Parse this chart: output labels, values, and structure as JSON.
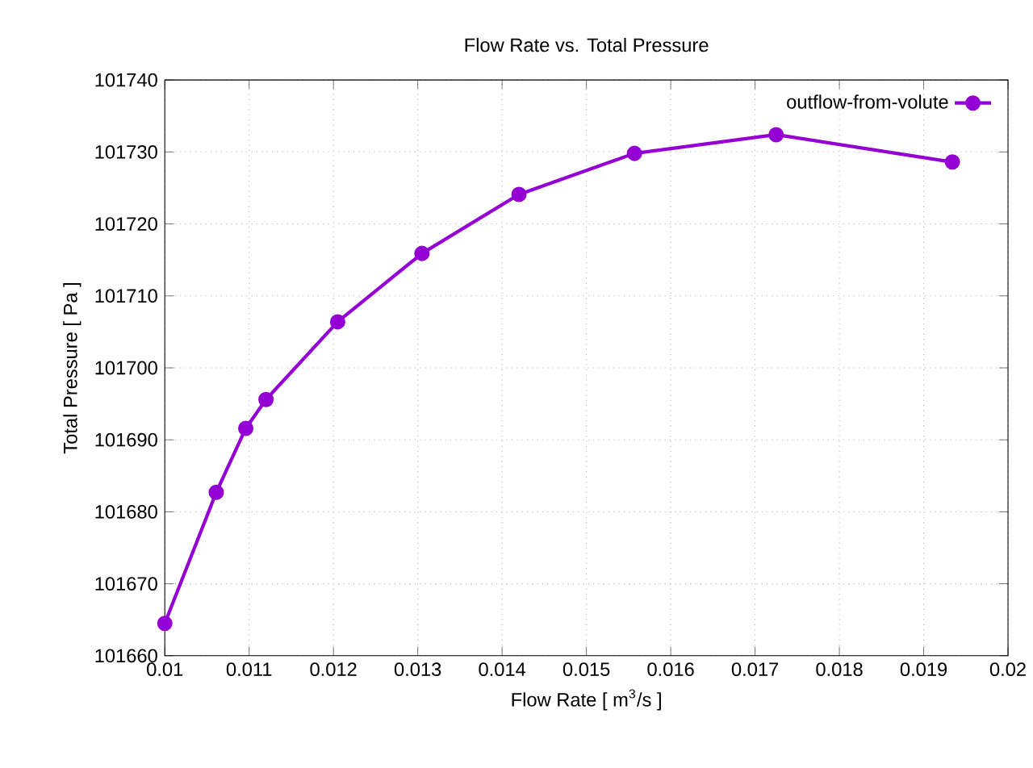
{
  "chart_data": {
    "type": "line",
    "title": "Flow Rate vs. Total Pressure",
    "xlabel": "Flow Rate [ m$^{3}$/s ]",
    "ylabel": "Total Pressure [ Pa ]",
    "x": [
      0.01,
      0.01061,
      0.01096,
      0.0112,
      0.01205,
      0.01305,
      0.0142,
      0.01557,
      0.01725,
      0.01934
    ],
    "series": [
      {
        "name": "outflow-from-volute",
        "color": "#9400d3",
        "values": [
          101664.5,
          101682.7,
          101691.6,
          101695.6,
          101706.4,
          101715.9,
          101724.1,
          101729.8,
          101732.4,
          101728.6
        ]
      }
    ],
    "xlim": [
      0.01,
      0.02
    ],
    "ylim": [
      101660,
      101740
    ],
    "xticks": [
      0.01,
      0.011,
      0.012,
      0.013,
      0.014,
      0.015,
      0.016,
      0.017,
      0.018,
      0.019,
      0.02
    ],
    "yticks": [
      101660,
      101670,
      101680,
      101690,
      101700,
      101710,
      101720,
      101730,
      101740
    ],
    "grid": true,
    "legend": "top right",
    "marker": "circle",
    "line_style": "solid"
  }
}
